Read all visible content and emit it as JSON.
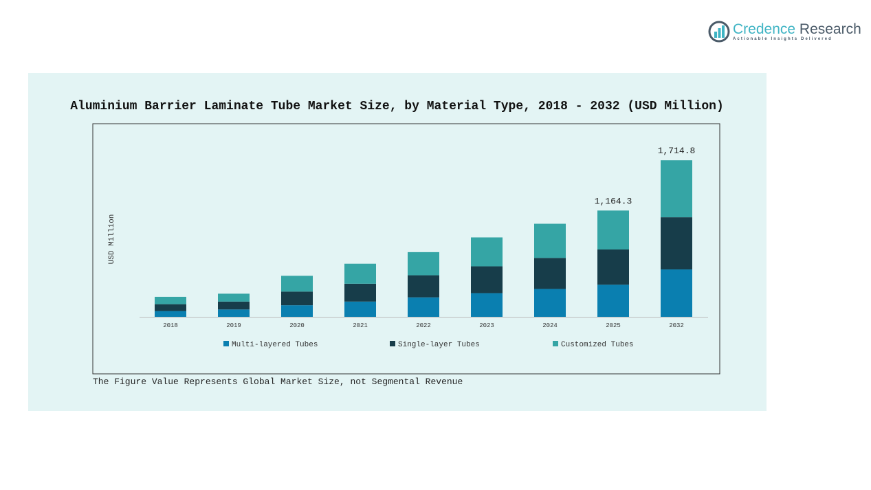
{
  "logo": {
    "name_part1": "Credence",
    "name_part2": " Research",
    "tagline": "Actionable Insights Delivered",
    "icon": "bar-chart-circle-icon"
  },
  "chart_data": {
    "type": "bar",
    "stacked": true,
    "title": "Aluminium Barrier Laminate Tube Market Size, by Material Type, 2018 - 2032 (USD Million)",
    "ylabel": "USD Million",
    "xlabel": "",
    "categories": [
      "2018",
      "2019",
      "2020",
      "2021",
      "2022",
      "2023",
      "2024",
      "2025",
      "2032"
    ],
    "series": [
      {
        "name": "Multi-layered Tubes",
        "color": "#0a7fb0",
        "values": [
          63.4,
          80.6,
          126.7,
          167.0,
          213.1,
          259.2,
          305.3,
          351.4,
          519.0
        ]
      },
      {
        "name": "Single-layer Tubes",
        "color": "#173d4a",
        "values": [
          74.9,
          86.4,
          149.8,
          195.8,
          241.9,
          293.8,
          339.8,
          386.1,
          571.6
        ]
      },
      {
        "name": "Customized Tubes",
        "color": "#35a5a5",
        "values": [
          80.6,
          86.4,
          172.8,
          218.9,
          253.4,
          316.8,
          374.4,
          426.8,
          624.2
        ]
      }
    ],
    "data_labels": {
      "2025": "1,164.3",
      "2032": "1,714.8"
    },
    "ylim": [
      0,
      2040
    ],
    "grid": false,
    "legend": "bottom",
    "y_ticks_shown": false
  },
  "footnote": "The Figure Value Represents Global Market Size, not Segmental Revenue"
}
